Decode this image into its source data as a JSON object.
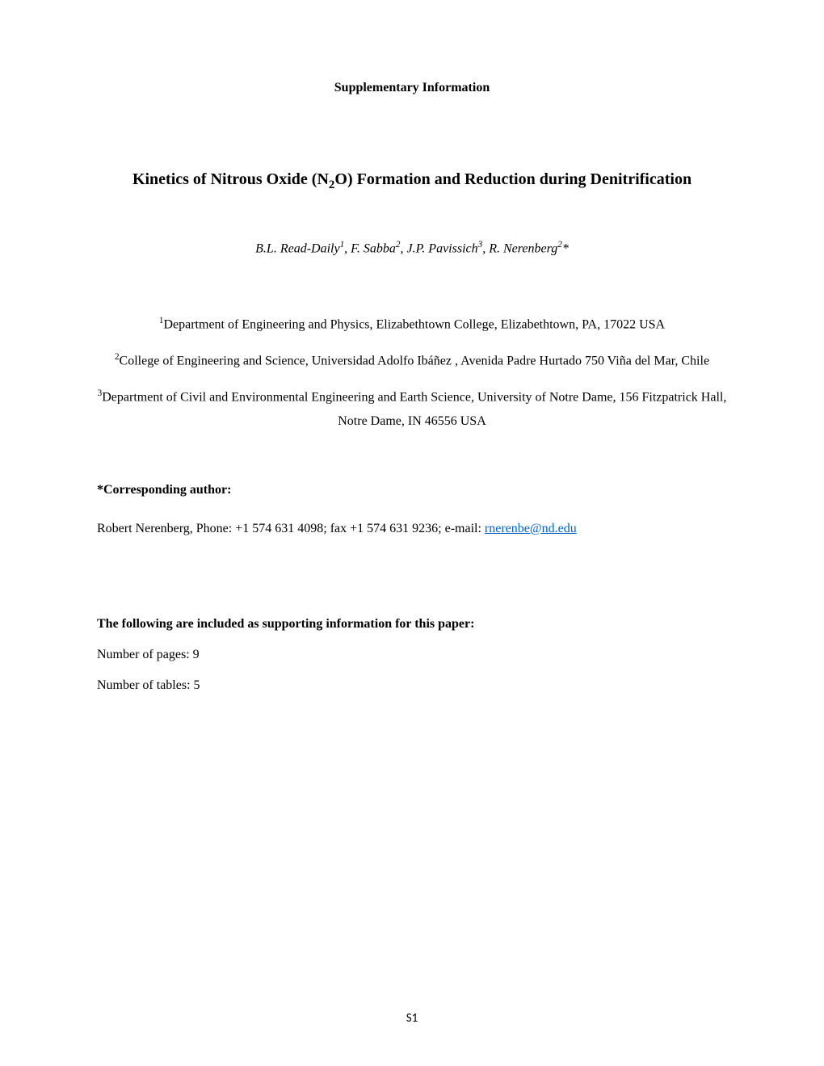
{
  "header": {
    "supplementary": "Supplementary Information"
  },
  "title": {
    "prefix": "Kinetics of Nitrous Oxide (N",
    "sub": "2",
    "suffix": "O) Formation and Reduction during Denitrification"
  },
  "authors": {
    "a1_name": "B.L. Read-Daily",
    "a1_sup": "1",
    "sep1": ", ",
    "a2_name": "F. Sabba",
    "a2_sup": "2",
    "sep2": ", ",
    "a3_name": "J.P. Pavissich",
    "a3_sup": "3",
    "sep3": ", ",
    "a4_name": "R. Nerenberg",
    "a4_sup": "2",
    "a4_star": "*"
  },
  "affiliations": {
    "aff1_sup": "1",
    "aff1_text": "Department of Engineering and Physics, Elizabethtown College, Elizabethtown, PA, 17022 USA",
    "aff2_sup": "2",
    "aff2_text": "College of Engineering and Science, Universidad Adolfo Ibáñez , Avenida Padre Hurtado 750 Viña del Mar, Chile",
    "aff3_sup": "3",
    "aff3_text": "Department of Civil and Environmental Engineering and Earth Science, University of Notre Dame, 156 Fitzpatrick Hall, Notre Dame, IN 46556 USA"
  },
  "corresponding": {
    "label": "*Corresponding author:",
    "text_prefix": "Robert Nerenberg, Phone: +1 574 631 4098; fax +1 574 631 9236; e-mail: ",
    "email": "rnerenbe@nd.edu"
  },
  "supporting": {
    "header": "The following are included as supporting information for this paper:",
    "pages": "Number of pages: 9",
    "tables": "Number of tables: 5"
  },
  "page_number": "S1",
  "colors": {
    "background": "#ffffff",
    "text": "#000000",
    "link": "#0563c1"
  },
  "typography": {
    "body_font": "Times New Roman",
    "title_fontsize": 20,
    "body_fontsize": 16,
    "header_weight": "bold"
  }
}
